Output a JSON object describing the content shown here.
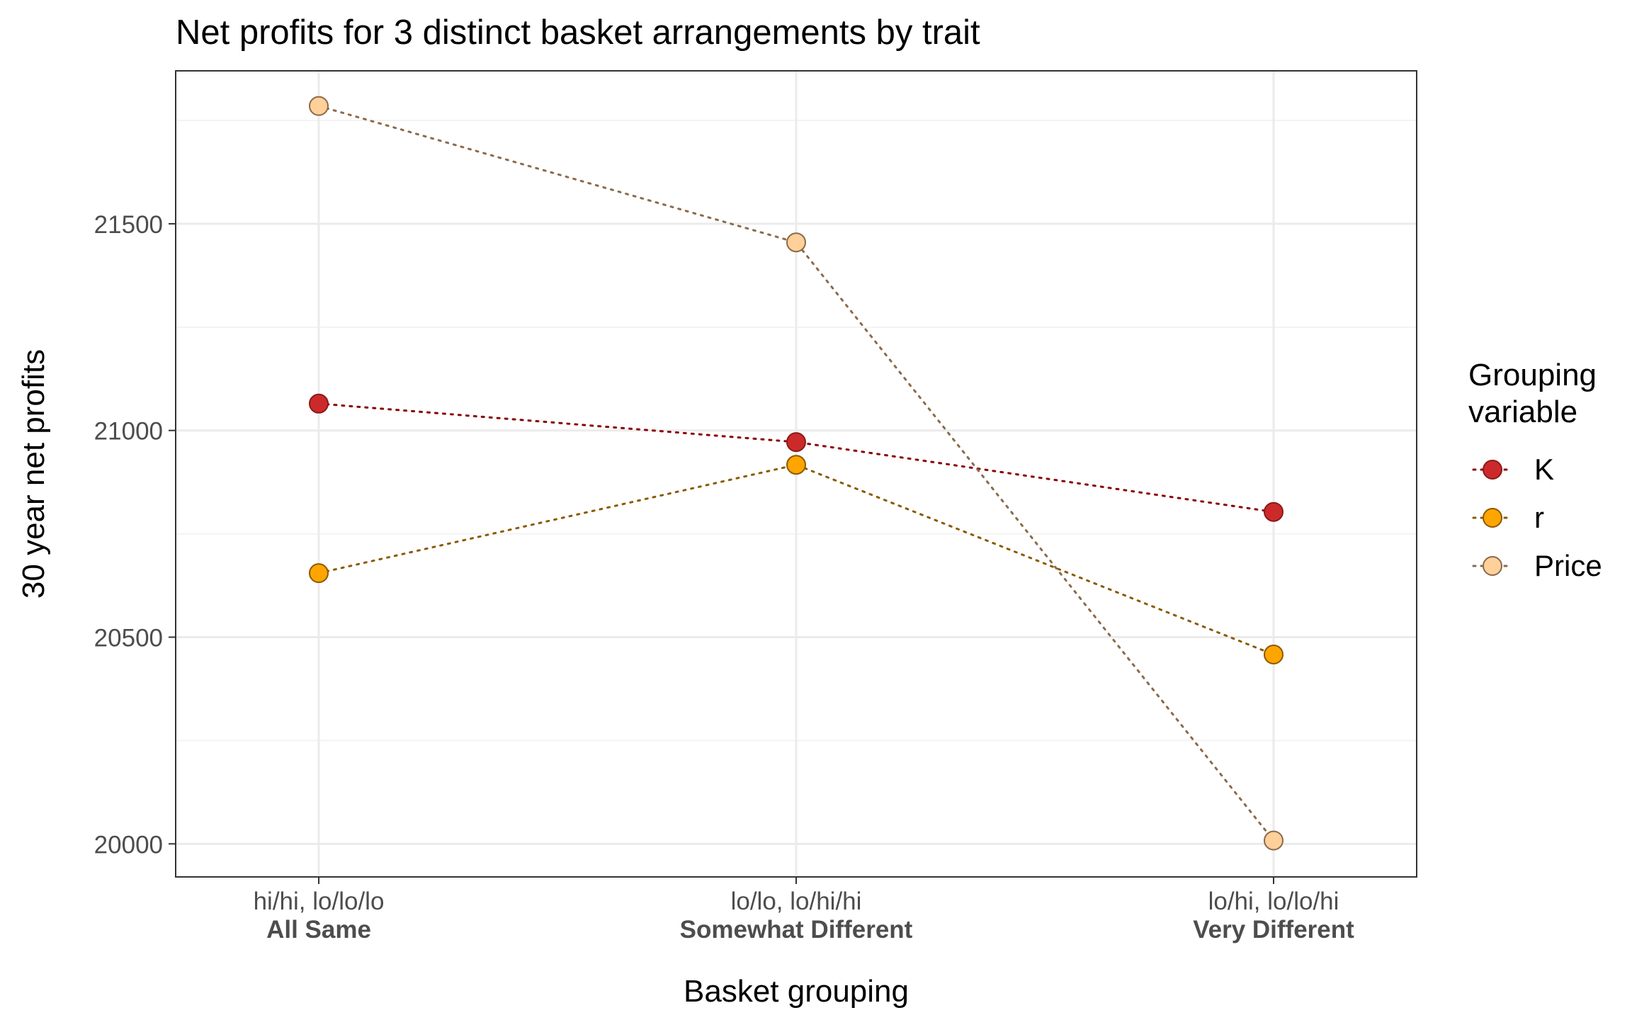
{
  "chart_data": {
    "type": "line",
    "title": "Net profits for 3 distinct basket arrangements by trait",
    "xlabel": "Basket grouping",
    "ylabel": "30 year net profits",
    "categories": [
      {
        "line1": "hi/hi, lo/lo/lo",
        "line2": "All Same"
      },
      {
        "line1": "lo/lo, lo/hi/hi",
        "line2": "Somewhat Different"
      },
      {
        "line1": "lo/hi, lo/lo/hi",
        "line2": "Very Different"
      }
    ],
    "ylim": [
      19920,
      21870
    ],
    "yticks": [
      20000,
      20500,
      21000,
      21500
    ],
    "grid": true,
    "legend": {
      "title_lines": [
        "Grouping",
        "variable"
      ],
      "placement": "right"
    },
    "series": [
      {
        "name": "K",
        "values": [
          21065,
          20972,
          20803
        ],
        "fill": "#cc2a2a",
        "stroke": "#8b1a1a",
        "line": "#8b0000"
      },
      {
        "name": "r",
        "values": [
          20655,
          20917,
          20458
        ],
        "fill": "#ffa500",
        "stroke": "#8b5a00",
        "line": "#8b5a00"
      },
      {
        "name": "Price",
        "values": [
          21785,
          21455,
          20008
        ],
        "fill": "#ffd09a",
        "stroke": "#8b6a4a",
        "line": "#8b6a4a"
      }
    ]
  }
}
